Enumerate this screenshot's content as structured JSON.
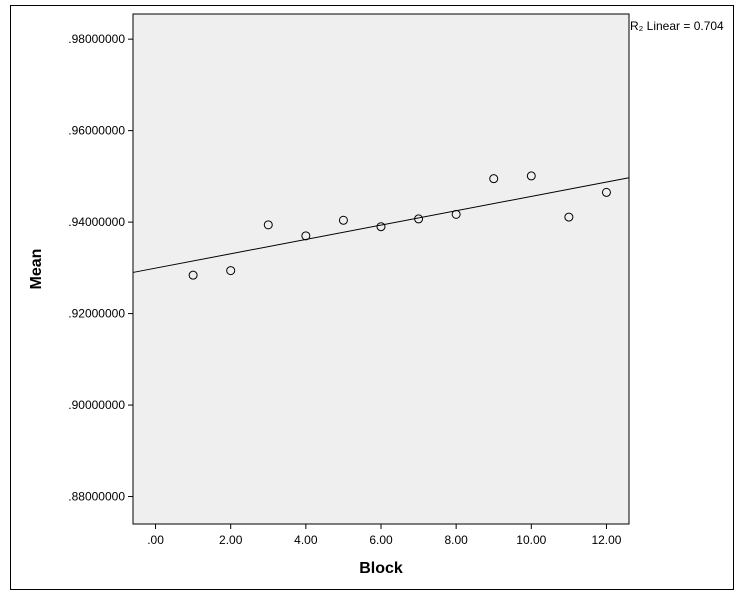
{
  "chart_data": {
    "type": "scatter",
    "title": "",
    "xlabel": "Block",
    "ylabel": "Mean",
    "xlim": [
      -0.6,
      12.6
    ],
    "ylim": [
      0.874,
      0.9855
    ],
    "x_ticks": [
      0,
      2,
      4,
      6,
      8,
      10,
      12
    ],
    "x_tick_labels": [
      ".00",
      "2.00",
      "4.00",
      "6.00",
      "8.00",
      "10.00",
      "12.00"
    ],
    "y_ticks": [
      0.88,
      0.9,
      0.92,
      0.94,
      0.96,
      0.98
    ],
    "y_tick_labels": [
      ".88000000",
      ".90000000",
      ".92000000",
      ".94000000",
      ".96000000",
      ".98000000"
    ],
    "grid": false,
    "plot_background": "#efefef",
    "marker": "open-circle",
    "series": [
      {
        "x": [
          1,
          2,
          3,
          4,
          5,
          6,
          7,
          8,
          9,
          10,
          11,
          12
        ],
        "y": [
          0.9284,
          0.9294,
          0.9394,
          0.937,
          0.9404,
          0.939,
          0.9407,
          0.9417,
          0.9495,
          0.9501,
          0.9411,
          0.9465
        ]
      }
    ],
    "fit_line": {
      "type": "linear",
      "y_at_x_min": 0.929,
      "y_at_x_max": 0.9497
    },
    "annotation": "R₂ Linear = 0.704"
  }
}
